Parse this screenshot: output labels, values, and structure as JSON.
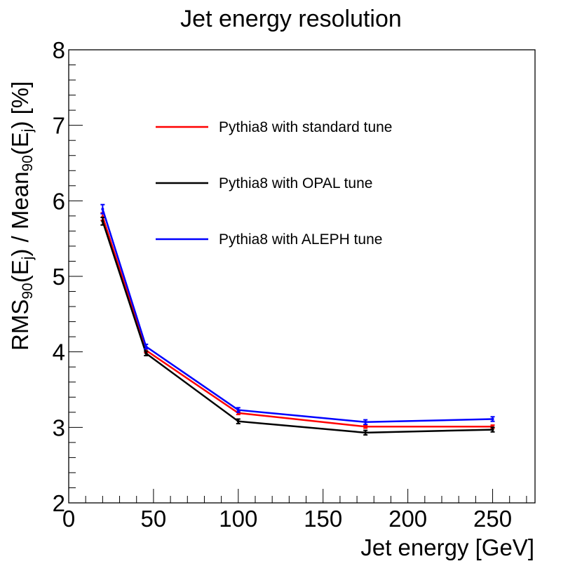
{
  "chart_data": {
    "type": "line",
    "title": "Jet energy resolution",
    "xlabel": "Jet energy [GeV]",
    "ylabel": {
      "parts": [
        "RMS",
        "90",
        "(E",
        "j",
        ") / Mean",
        "90",
        "(E",
        "j",
        ") [%]"
      ]
    },
    "xlim": [
      0,
      275
    ],
    "ylim": [
      2,
      8
    ],
    "xticks": [
      0,
      50,
      100,
      150,
      200,
      250
    ],
    "yticks": [
      2,
      3,
      4,
      5,
      6,
      7,
      8
    ],
    "x": [
      20,
      45.6,
      100,
      175,
      250
    ],
    "series": [
      {
        "name": "Pythia8 with standard tune",
        "color": "#ff0000",
        "values": [
          5.79,
          4.02,
          3.19,
          3.01,
          3.01
        ],
        "errors": [
          0.05,
          0.03,
          0.02,
          0.02,
          0.02
        ]
      },
      {
        "name": "Pythia8 with OPAL tune",
        "color": "#000000",
        "values": [
          5.73,
          3.98,
          3.08,
          2.93,
          2.97
        ],
        "errors": [
          0.05,
          0.03,
          0.03,
          0.03,
          0.03
        ]
      },
      {
        "name": "Pythia8 with ALEPH tune",
        "color": "#0000ff",
        "values": [
          5.89,
          4.07,
          3.23,
          3.07,
          3.11
        ],
        "errors": [
          0.06,
          0.03,
          0.03,
          0.03,
          0.03
        ]
      }
    ],
    "legend": "top-center"
  }
}
